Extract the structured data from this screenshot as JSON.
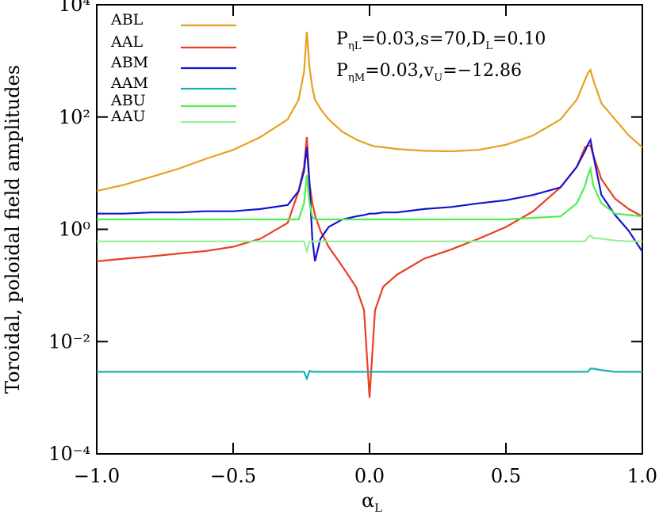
{
  "chart_data": {
    "type": "line",
    "y_label": "Toroidal, poloidal field amplitudes",
    "x_label": {
      "parts": [
        "α",
        "L"
      ]
    },
    "annotations": [
      {
        "parts": [
          "P",
          "ηL",
          "=0.03,s=70,D",
          "L",
          "=0.10"
        ]
      },
      {
        "parts": [
          "P",
          "ηM",
          "=0.03,v",
          "U",
          "=−12.86"
        ]
      }
    ],
    "log_y": true,
    "legend": "top-left",
    "xlim": [
      -1,
      1
    ],
    "xticks": [
      {
        "value": -1,
        "label": "−1.0"
      },
      {
        "value": -0.5,
        "label": "−0.5"
      },
      {
        "value": 0,
        "label": "0.0"
      },
      {
        "value": 0.5,
        "label": "0.5"
      },
      {
        "value": 1,
        "label": "1.0"
      }
    ],
    "ylim": [
      0.0001,
      10000
    ],
    "yticks": [
      {
        "value": 0.0001,
        "label": "10⁻⁴"
      },
      {
        "value": 0.01,
        "label": "10⁻²"
      },
      {
        "value": 1,
        "label": "10⁰"
      },
      {
        "value": 100,
        "label": "10²"
      },
      {
        "value": 10000,
        "label": "10⁴"
      }
    ],
    "x": [
      -1,
      -0.9,
      -0.8,
      -0.7,
      -0.6,
      -0.5,
      -0.4,
      -0.3,
      -0.26,
      -0.24,
      -0.23,
      -0.22,
      -0.21,
      -0.2,
      -0.18,
      -0.15,
      -0.1,
      -0.05,
      -0.02,
      0,
      0.02,
      0.05,
      0.1,
      0.2,
      0.3,
      0.4,
      0.5,
      0.6,
      0.7,
      0.76,
      0.79,
      0.8,
      0.81,
      0.82,
      0.85,
      0.9,
      0.95,
      1.0
    ],
    "series": [
      {
        "name": "ABL",
        "color": "#e8a020",
        "values": [
          4.8,
          6.2,
          8.6,
          12,
          18,
          26,
          44,
          91,
          205,
          640,
          3300,
          760,
          335,
          205,
          140,
          91,
          55,
          40,
          35,
          32,
          30,
          29,
          27,
          25,
          24.5,
          26,
          32,
          47,
          91,
          205,
          460,
          600,
          690,
          460,
          175,
          91,
          47,
          29
        ]
      },
      {
        "name": "AAL",
        "color": "#e84020",
        "values": [
          0.27,
          0.3,
          0.33,
          0.37,
          0.41,
          0.49,
          0.68,
          1.3,
          4.8,
          13,
          44,
          6.6,
          3,
          1.8,
          0.94,
          0.49,
          0.22,
          0.095,
          0.036,
          0.001,
          0.036,
          0.095,
          0.155,
          0.3,
          0.44,
          0.68,
          1.1,
          2.1,
          5.6,
          13,
          29,
          31,
          31,
          21,
          7.8,
          3.5,
          2.3,
          1.7
        ]
      },
      {
        "name": "ABM",
        "color": "#1414d0",
        "values": [
          1.9,
          1.9,
          2.0,
          2.0,
          2.1,
          2.1,
          2.3,
          2.7,
          4.8,
          11,
          29,
          6.6,
          0.68,
          0.27,
          0.68,
          1.1,
          1.5,
          1.7,
          1.8,
          1.9,
          1.9,
          2.0,
          2.0,
          2.3,
          2.5,
          2.9,
          3.3,
          4.1,
          5.6,
          13,
          25,
          32,
          39,
          21,
          4.1,
          1.8,
          0.94,
          0.4
        ]
      },
      {
        "name": "AAM",
        "color": "#18b0b8",
        "values": [
          0.0029,
          0.0029,
          0.0029,
          0.0029,
          0.0029,
          0.0029,
          0.0029,
          0.0029,
          0.0029,
          0.0029,
          0.0022,
          0.003,
          0.0029,
          0.0029,
          0.0029,
          0.0029,
          0.0029,
          0.0029,
          0.0029,
          0.0029,
          0.0029,
          0.0029,
          0.0029,
          0.0029,
          0.0029,
          0.0029,
          0.0029,
          0.0029,
          0.0029,
          0.0029,
          0.0029,
          0.0029,
          0.0033,
          0.0033,
          0.0031,
          0.0029,
          0.0029,
          0.0029
        ]
      },
      {
        "name": "ABU",
        "color": "#50ee50",
        "values": [
          1.5,
          1.5,
          1.5,
          1.5,
          1.5,
          1.5,
          1.5,
          1.5,
          1.5,
          2.9,
          9.2,
          2.9,
          1.7,
          1.5,
          1.5,
          1.5,
          1.5,
          1.5,
          1.5,
          1.5,
          1.5,
          1.5,
          1.5,
          1.5,
          1.5,
          1.5,
          1.5,
          1.6,
          1.7,
          2.9,
          6,
          9,
          12,
          6,
          2.9,
          1.9,
          1.8,
          1.7
        ]
      },
      {
        "name": "AAU",
        "color": "#98f098",
        "values": [
          0.61,
          0.61,
          0.61,
          0.61,
          0.61,
          0.61,
          0.61,
          0.61,
          0.61,
          0.61,
          0.41,
          0.61,
          0.61,
          0.61,
          0.61,
          0.61,
          0.61,
          0.61,
          0.61,
          0.61,
          0.61,
          0.61,
          0.61,
          0.61,
          0.61,
          0.61,
          0.61,
          0.61,
          0.61,
          0.61,
          0.61,
          0.72,
          0.77,
          0.7,
          0.68,
          0.63,
          0.61,
          0.61
        ]
      }
    ]
  }
}
